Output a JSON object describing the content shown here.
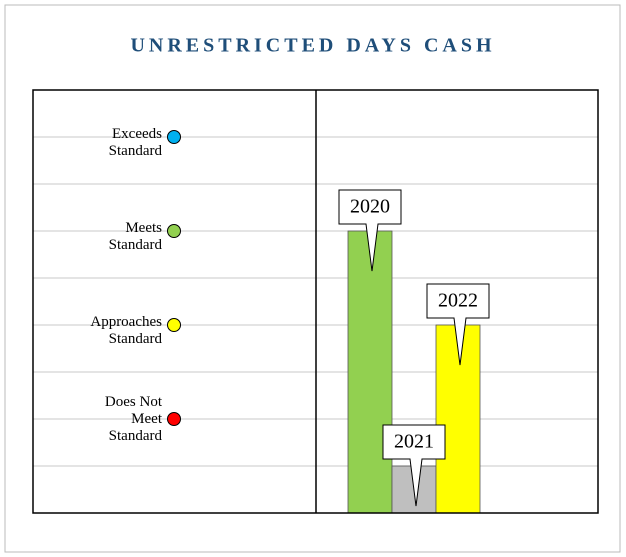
{
  "chart_data": {
    "type": "bar",
    "title": "UNRESTRICTED DAYS CASH",
    "categories": [
      "2020",
      "2021",
      "2022"
    ],
    "values": [
      6,
      1,
      4
    ],
    "colors": [
      "#92d050",
      "#bfbfbf",
      "#ffff00"
    ],
    "ylim": [
      0,
      9
    ],
    "yticks": [
      {
        "value": 8,
        "label": "Exceeds\nStandard",
        "color": "#00b0f0"
      },
      {
        "value": 6,
        "label": "Meets\nStandard",
        "color": "#92d050"
      },
      {
        "value": 4,
        "label": "Approaches\nStandard",
        "color": "#ffff00"
      },
      {
        "value": 2,
        "label": "Does Not\nMeet\nStandard",
        "color": "#ff0000"
      }
    ],
    "minor_yticks": [
      1,
      3,
      5,
      7
    ],
    "grid": true
  }
}
